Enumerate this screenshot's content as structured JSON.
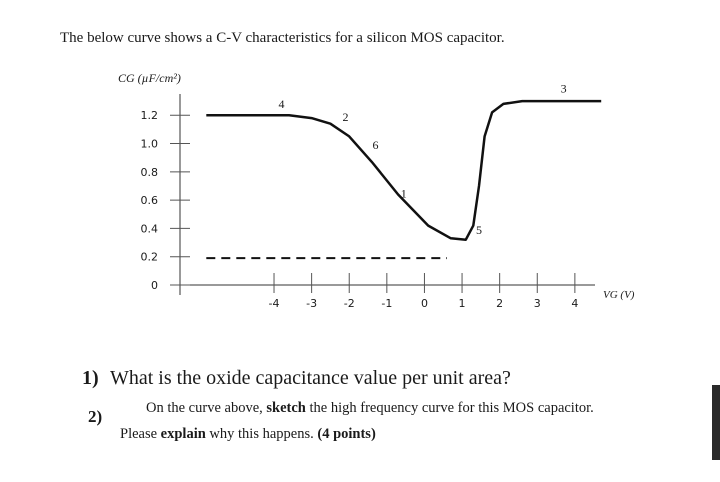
{
  "header": {
    "title": "The below curve shows a C-V characteristics for a silicon MOS capacitor."
  },
  "chart_data": {
    "type": "line",
    "y_label": "CG (µF/cm²)",
    "x_label": "VG (V)",
    "xlim": [
      -6.5,
      5.2
    ],
    "ylim": [
      0,
      1.35
    ],
    "xticks": [
      -4,
      -3,
      -2,
      -1,
      0,
      1,
      2,
      3,
      4
    ],
    "yticks": [
      0,
      0.2,
      0.4,
      0.6,
      0.8,
      {
        "value": 1,
        "label": "1.0"
      },
      1.2
    ],
    "series": [
      {
        "name": "C-V curve",
        "color": "#111111",
        "style": "solid",
        "x": [
          -5.8,
          -4.5,
          -3.6,
          -3.0,
          -2.5,
          -2.0,
          -1.4,
          -0.7,
          0.1,
          0.7,
          1.1,
          1.3,
          1.45,
          1.6,
          1.8,
          2.1,
          2.6,
          3.5,
          4.7
        ],
        "values": [
          1.2,
          1.2,
          1.2,
          1.18,
          1.14,
          1.05,
          0.87,
          0.64,
          0.42,
          0.33,
          0.32,
          0.42,
          0.7,
          1.05,
          1.22,
          1.28,
          1.3,
          1.3,
          1.3
        ]
      },
      {
        "name": "dashed level",
        "color": "#111111",
        "style": "dashed",
        "x": [
          -5.8,
          0.6
        ],
        "values": [
          0.19,
          0.19
        ]
      }
    ],
    "annotations": [
      {
        "text": "4",
        "x": -3.8,
        "y": 1.25
      },
      {
        "text": "2",
        "x": -2.1,
        "y": 1.16
      },
      {
        "text": "6",
        "x": -1.3,
        "y": 0.96
      },
      {
        "text": "1",
        "x": -0.55,
        "y": 0.62
      },
      {
        "text": "5",
        "x": 1.45,
        "y": 0.36
      },
      {
        "text": "3",
        "x": 3.7,
        "y": 1.36
      }
    ]
  },
  "questions": [
    {
      "number": "1)",
      "runs": [
        {
          "text": "What is the oxide capacitance value per unit area?"
        }
      ]
    },
    {
      "number": "2)",
      "runs": [
        {
          "text": "On the curve above, "
        },
        {
          "text": "sketch",
          "bold": true
        },
        {
          "text": " the high frequency curve for this MOS capacitor."
        }
      ],
      "runs2": [
        {
          "text": "Please "
        },
        {
          "text": "explain",
          "bold": true
        },
        {
          "text": " why this happens. "
        },
        {
          "text": "(4 points)",
          "bold": true
        }
      ]
    }
  ]
}
